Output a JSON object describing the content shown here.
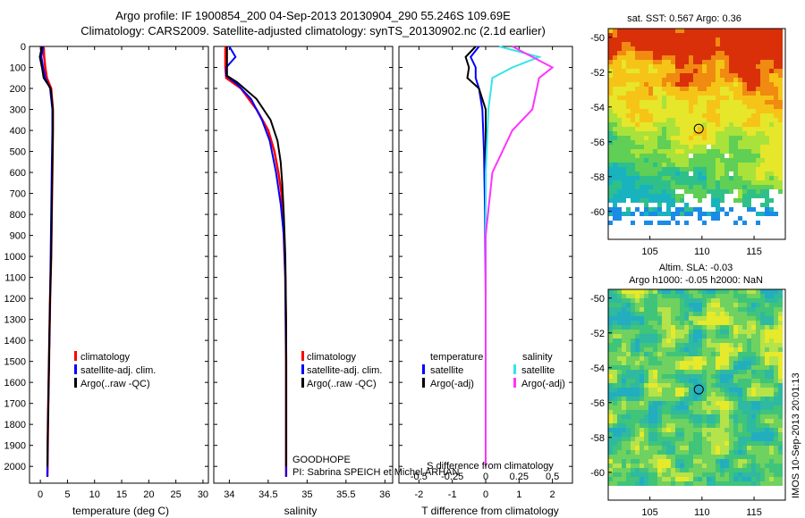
{
  "header": {
    "title_line1": "Argo profile: IF 1900854_200 04-Sep-2013 20130904_290 55.246S 109.69E",
    "title_line2": "Climatology: CARS2009. Satellite-adjusted climatology: synTS_20130902.nc (2.1d earlier)"
  },
  "depth_ticks": [
    0,
    100,
    200,
    300,
    400,
    500,
    600,
    700,
    800,
    900,
    1000,
    1100,
    1200,
    1300,
    1400,
    1500,
    1600,
    1700,
    1800,
    1900,
    2000
  ],
  "colors": {
    "climatology": "#ff0000",
    "satellite": "#0000ff",
    "argo": "#000000",
    "sal_satellite": "#33e6e6",
    "sal_argo": "#ff33ff"
  },
  "panels": {
    "temperature": {
      "xlabel": "temperature (deg C)",
      "legend": [
        "climatology",
        "satellite-adj. clim.",
        "Argo(..raw -QC)"
      ]
    },
    "salinity": {
      "xlabel": "salinity",
      "legend": [
        "climatology",
        "satellite-adj. clim.",
        "Argo(..raw -QC)"
      ],
      "note1": "GOODHOPE",
      "note2": "PI: Sabrina SPEICH et Michel ARHAN"
    },
    "difference": {
      "xlabel": "T difference from climatology",
      "s_label": "S difference from climatology",
      "legend_temp_title": "temperature",
      "legend_sal_title": "salinity",
      "legend_temp": [
        "satellite",
        "Argo(-adj)"
      ],
      "legend_sal": [
        "satellite",
        "Argo(-adj)"
      ]
    }
  },
  "maps": {
    "sst_title": "sat. SST: 0.567 Argo: 0.36",
    "sla_title1": "Altim. SLA: -0.03",
    "sla_title2": "Argo h1000: -0.05 h2000: NaN",
    "lon_ticks": [
      105,
      110,
      115
    ],
    "lat_ticks": [
      -50,
      -52,
      -54,
      -56,
      -58,
      -60
    ],
    "lon_range": [
      101,
      118
    ],
    "lat_range": [
      -49.5,
      -61.6
    ],
    "argo_lon": 109.69,
    "argo_lat": -55.246
  },
  "footer": {
    "stamp": "IMOS 10-Sep-2013 20:01:13"
  },
  "chart_data": [
    {
      "type": "line",
      "xlabel": "temperature (deg C)",
      "ylim": [
        2080,
        0
      ],
      "xlim": [
        -2,
        31
      ],
      "xticks": [
        0,
        5,
        10,
        15,
        20,
        25,
        30
      ],
      "series": [
        {
          "name": "climatology",
          "points": [
            [
              0.6,
              0
            ],
            [
              0.7,
              50
            ],
            [
              0.9,
              100
            ],
            [
              1.2,
              150
            ],
            [
              2.0,
              200
            ],
            [
              2.3,
              300
            ],
            [
              2.3,
              400
            ],
            [
              2.2,
              600
            ],
            [
              2.1,
              800
            ],
            [
              2.0,
              1000
            ],
            [
              1.8,
              1200
            ],
            [
              1.6,
              1500
            ],
            [
              1.4,
              1800
            ],
            [
              1.3,
              2050
            ]
          ]
        },
        {
          "name": "satellite-adj. clim.",
          "points": [
            [
              0.5,
              0
            ],
            [
              0.2,
              50
            ],
            [
              0.5,
              100
            ],
            [
              0.9,
              150
            ],
            [
              1.8,
              200
            ],
            [
              2.2,
              300
            ],
            [
              2.2,
              400
            ],
            [
              2.1,
              600
            ],
            [
              2.0,
              800
            ],
            [
              1.9,
              1000
            ],
            [
              1.8,
              1200
            ],
            [
              1.6,
              1500
            ],
            [
              1.4,
              1800
            ],
            [
              1.3,
              2050
            ]
          ]
        },
        {
          "name": "Argo(..raw -QC)",
          "points": [
            [
              0.3,
              0
            ],
            [
              -0.1,
              50
            ],
            [
              0.3,
              100
            ],
            [
              0.6,
              150
            ],
            [
              1.9,
              200
            ],
            [
              2.3,
              300
            ],
            [
              2.3,
              400
            ],
            [
              2.2,
              600
            ],
            [
              2.1,
              800
            ],
            [
              2.0,
              1000
            ],
            [
              1.8,
              1200
            ],
            [
              1.6,
              1500
            ],
            [
              1.4,
              1800
            ],
            [
              1.3,
              2000
            ]
          ]
        }
      ]
    },
    {
      "type": "line",
      "xlabel": "salinity",
      "ylim": [
        2080,
        0
      ],
      "xlim": [
        33.8,
        36.1
      ],
      "xticks": [
        34,
        34.5,
        35,
        35.5,
        36
      ],
      "series": [
        {
          "name": "climatology",
          "points": [
            [
              33.95,
              0
            ],
            [
              33.95,
              100
            ],
            [
              33.96,
              150
            ],
            [
              34.15,
              200
            ],
            [
              34.35,
              300
            ],
            [
              34.5,
              400
            ],
            [
              34.58,
              500
            ],
            [
              34.63,
              600
            ],
            [
              34.67,
              700
            ],
            [
              34.7,
              900
            ],
            [
              34.72,
              1100
            ],
            [
              34.73,
              1500
            ],
            [
              34.73,
              2050
            ]
          ]
        },
        {
          "name": "satellite-adj. clim.",
          "points": [
            [
              34.0,
              0
            ],
            [
              34.08,
              50
            ],
            [
              33.96,
              100
            ],
            [
              33.96,
              140
            ],
            [
              34.1,
              180
            ],
            [
              34.28,
              250
            ],
            [
              34.42,
              350
            ],
            [
              34.52,
              450
            ],
            [
              34.6,
              600
            ],
            [
              34.66,
              750
            ],
            [
              34.7,
              900
            ],
            [
              34.72,
              1100
            ],
            [
              34.73,
              1500
            ],
            [
              34.73,
              2050
            ]
          ]
        },
        {
          "name": "Argo(..raw -QC)",
          "points": [
            [
              33.97,
              0
            ],
            [
              33.97,
              140
            ],
            [
              34.1,
              170
            ],
            [
              34.35,
              250
            ],
            [
              34.53,
              350
            ],
            [
              34.62,
              450
            ],
            [
              34.66,
              550
            ],
            [
              34.68,
              650
            ],
            [
              34.7,
              800
            ],
            [
              34.72,
              1000
            ],
            [
              34.73,
              1300
            ],
            [
              34.73,
              2000
            ]
          ]
        }
      ]
    },
    {
      "type": "line",
      "xlabel": "T difference from climatology",
      "ylim": [
        2080,
        0
      ],
      "xlim": [
        -2.6,
        2.6
      ],
      "xticks": [
        -2,
        -1,
        0,
        1,
        2
      ],
      "s_xticks": [
        -0.5,
        -0.25,
        0,
        0.25,
        0.5
      ],
      "series": [
        {
          "name": "temperature satellite",
          "points": [
            [
              -0.2,
              0
            ],
            [
              -0.45,
              50
            ],
            [
              -0.3,
              100
            ],
            [
              -0.3,
              150
            ],
            [
              -0.2,
              200
            ],
            [
              -0.1,
              300
            ],
            [
              -0.05,
              500
            ],
            [
              -0.02,
              800
            ],
            [
              0,
              1200
            ],
            [
              0,
              1500
            ]
          ]
        },
        {
          "name": "temperature Argo(-adj)",
          "points": [
            [
              -0.3,
              0
            ],
            [
              -0.6,
              50
            ],
            [
              -0.5,
              100
            ],
            [
              -0.55,
              150
            ],
            [
              -0.2,
              200
            ],
            [
              0,
              300
            ],
            [
              0,
              500
            ],
            [
              0,
              800
            ],
            [
              0,
              1200
            ],
            [
              0,
              1500
            ]
          ]
        },
        {
          "name": "salinity satellite",
          "points": [
            [
              0.1,
              0
            ],
            [
              0.4,
              50
            ],
            [
              0.2,
              100
            ],
            [
              0.05,
              150
            ],
            [
              0.02,
              300
            ],
            [
              0,
              600
            ],
            [
              0,
              1000
            ],
            [
              0,
              2000
            ]
          ]
        },
        {
          "name": "salinity Argo(-adj)",
          "points": [
            [
              0.2,
              0
            ],
            [
              0.5,
              100
            ],
            [
              0.4,
              150
            ],
            [
              0.35,
              300
            ],
            [
              0.2,
              400
            ],
            [
              0.05,
              600
            ],
            [
              0,
              900
            ],
            [
              0,
              2000
            ]
          ]
        }
      ]
    }
  ]
}
